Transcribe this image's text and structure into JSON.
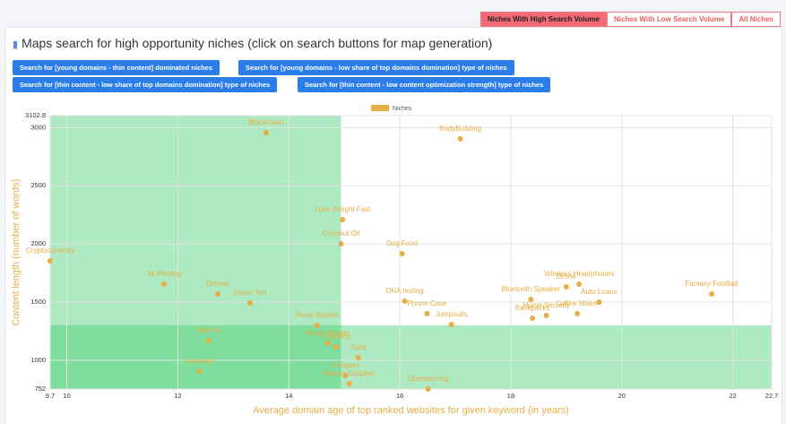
{
  "tabs": [
    "Niches With High Search Volume",
    "Niches With Low Search Volume",
    "All Niches"
  ],
  "heading": "Maps search for high opportunity niches (click on search buttons for map generation)",
  "buttons": [
    "Search for [young domains - thin content] dominated niches",
    "Search for [young domains - low share of top domains domination] type of niches",
    "Search for [thin content - low share of top domains domination] type of niches",
    "Search for [thin content - low content optimization strength] type of niches"
  ],
  "chart_data": {
    "type": "scatter",
    "xlabel": "Average domain age of top ranked websites for given keyword (in years)",
    "ylabel": "Content length (number of words)",
    "xlim": [
      9.7,
      22.7
    ],
    "xticks": [
      9.7,
      10,
      12,
      14,
      16,
      18,
      20,
      22,
      22.7
    ],
    "ylim": [
      752,
      3102.8
    ],
    "yticks": [
      752,
      1000,
      1500,
      2000,
      2500,
      3000,
      3102.8
    ],
    "grid": true,
    "regions": [
      {
        "xlim": [
          9.7,
          14.94
        ],
        "ylim": [
          752,
          3102.8
        ],
        "color": "rgba(60,205,110,0.42)"
      },
      {
        "xlim": [
          9.7,
          22.7
        ],
        "ylim": [
          752,
          1300
        ],
        "color": "rgba(60,205,110,0.42)"
      }
    ],
    "series": [
      {
        "name": "Niches",
        "color": "#e6ae45",
        "labels": [
          "Blockchain",
          "BodyBuilding",
          "Lose Weight Fast",
          "Coconut Oil",
          "Dog Food",
          "Cryptocurrency",
          "3d Printing",
          "Drones",
          "Green Tea",
          "Hover Boards",
          "Matcha",
          "Balayage",
          "Bridal Shower",
          "Camping",
          "Tarot",
          "Antiques",
          "Beauty Supplies",
          "Ubersetzung",
          "DNA testing",
          "Phone Case",
          "Jumpsuits",
          "Bluetooth Speaker",
          "Wireless Headphones",
          "Drone",
          "Auto Loans",
          "Coffee Maker",
          "Home Security",
          "Backpacks",
          "Fantasy Football"
        ],
        "x": [
          13.59,
          17.09,
          14.97,
          14.94,
          16.04,
          9.7,
          11.75,
          12.72,
          13.3,
          14.51,
          12.55,
          12.39,
          14.7,
          14.85,
          15.25,
          15.02,
          15.09,
          16.51,
          16.09,
          16.49,
          16.93,
          18.36,
          19.23,
          19.0,
          19.59,
          19.2,
          18.64,
          18.39,
          21.62
        ],
        "values": [
          2957,
          2903,
          2209,
          2001,
          1916,
          1854,
          1654,
          1569,
          1492,
          1299,
          1168,
          906,
          1145,
          1114,
          1022,
          868,
          798,
          752,
          1508,
          1400,
          1307,
          1523,
          1654,
          1631,
          1500,
          1400,
          1384,
          1361,
          1569
        ]
      }
    ]
  }
}
